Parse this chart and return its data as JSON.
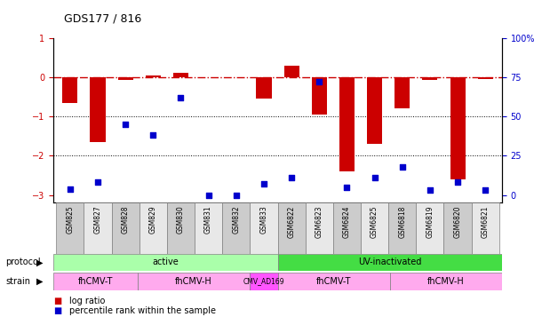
{
  "title": "GDS177 / 816",
  "samples": [
    "GSM825",
    "GSM827",
    "GSM828",
    "GSM829",
    "GSM830",
    "GSM831",
    "GSM832",
    "GSM833",
    "GSM6822",
    "GSM6823",
    "GSM6824",
    "GSM6825",
    "GSM6818",
    "GSM6819",
    "GSM6820",
    "GSM6821"
  ],
  "log_ratio": [
    -0.65,
    -1.65,
    -0.07,
    0.05,
    0.12,
    0.0,
    0.0,
    -0.55,
    0.3,
    -0.95,
    -2.4,
    -1.7,
    -0.8,
    -0.07,
    -2.6,
    -0.05
  ],
  "pct_rank": [
    4,
    8,
    45,
    38,
    62,
    0,
    0,
    7,
    11,
    72,
    5,
    11,
    18,
    3,
    8,
    3
  ],
  "ylim": [
    -3.2,
    1.0
  ],
  "yticks_left": [
    -3,
    -2,
    -1,
    0,
    1
  ],
  "yticks_right": [
    0,
    25,
    50,
    75,
    100
  ],
  "bar_color": "#cc0000",
  "dot_color": "#0000cc",
  "hline_color": "#cc0000",
  "grid_color": "#000000",
  "protocol_active_color": "#aaffaa",
  "protocol_uv_color": "#44dd44",
  "strain_color": "#ffaaff",
  "strain_ad169_color": "#ff44ff",
  "bg_color": "#ffffff",
  "protocol_labels": [
    {
      "label": "active",
      "start": 0,
      "end": 7
    },
    {
      "label": "UV-inactivated",
      "start": 8,
      "end": 15
    }
  ],
  "strain_labels": [
    {
      "label": "fhCMV-T",
      "start": 0,
      "end": 2,
      "color": "#ffaaee"
    },
    {
      "label": "fhCMV-H",
      "start": 3,
      "end": 6,
      "color": "#ffaaee"
    },
    {
      "label": "CMV_AD169",
      "start": 7,
      "end": 7,
      "color": "#ff55ff"
    },
    {
      "label": "fhCMV-T",
      "start": 8,
      "end": 11,
      "color": "#ffaaee"
    },
    {
      "label": "fhCMV-H",
      "start": 12,
      "end": 15,
      "color": "#ffaaee"
    }
  ]
}
